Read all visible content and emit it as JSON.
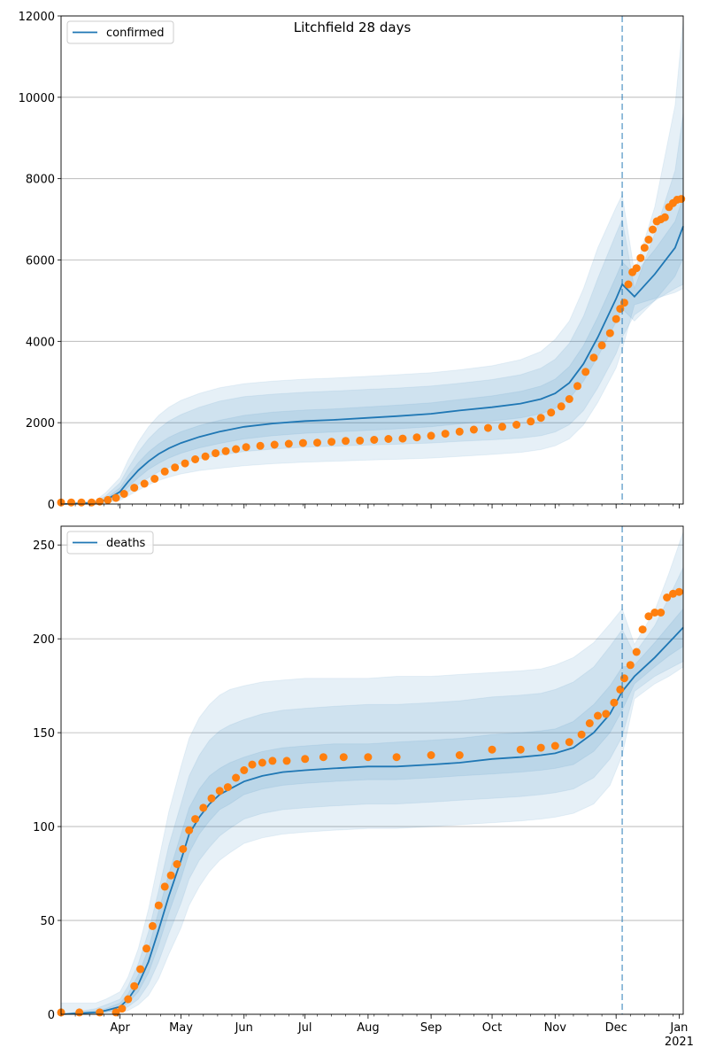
{
  "title": "Litchfield 28 days",
  "colors": {
    "model": "#1f77b4",
    "observed": "#ff7f0e",
    "band": "#1f77b4",
    "grid": "#b0b0b0",
    "cutoff": "#1f77b4"
  },
  "x_axis": {
    "start": "2020-03-03",
    "end": "2021-01-03",
    "ticks": [
      {
        "date": "2020-04-01",
        "label": "Apr"
      },
      {
        "date": "2020-05-01",
        "label": "May"
      },
      {
        "date": "2020-06-01",
        "label": "Jun"
      },
      {
        "date": "2020-07-01",
        "label": "Jul"
      },
      {
        "date": "2020-08-01",
        "label": "Aug"
      },
      {
        "date": "2020-09-01",
        "label": "Sep"
      },
      {
        "date": "2020-10-01",
        "label": "Oct"
      },
      {
        "date": "2020-11-01",
        "label": "Nov"
      },
      {
        "date": "2020-12-01",
        "label": "Dec"
      },
      {
        "date": "2021-01-01",
        "label": "Jan",
        "sublabel": "2021"
      }
    ]
  },
  "chart_data": [
    {
      "type": "line",
      "panel": "top",
      "title": "Litchfield 28 days",
      "legend": "confirmed",
      "legend_position": "top-left",
      "grid": true,
      "ylim": [
        0,
        12000
      ],
      "yticks": [
        0,
        2000,
        4000,
        6000,
        8000,
        10000,
        12000
      ],
      "cutoff_date": "2020-12-04",
      "model": {
        "dates": [
          "2020-03-03",
          "2020-03-20",
          "2020-03-25",
          "2020-04-01",
          "2020-04-05",
          "2020-04-10",
          "2020-04-15",
          "2020-04-20",
          "2020-04-25",
          "2020-05-01",
          "2020-05-10",
          "2020-05-20",
          "2020-06-01",
          "2020-06-15",
          "2020-07-01",
          "2020-07-15",
          "2020-08-01",
          "2020-08-15",
          "2020-09-01",
          "2020-09-15",
          "2020-10-01",
          "2020-10-15",
          "2020-10-25",
          "2020-11-01",
          "2020-11-08",
          "2020-11-15",
          "2020-11-22",
          "2020-12-01",
          "2020-12-04",
          "2020-12-10",
          "2020-12-20",
          "2020-12-30",
          "2021-01-03"
        ],
        "median": [
          0,
          30,
          100,
          300,
          550,
          830,
          1050,
          1230,
          1370,
          1500,
          1650,
          1780,
          1900,
          1980,
          2040,
          2070,
          2120,
          2160,
          2220,
          2300,
          2380,
          2470,
          2580,
          2720,
          2980,
          3450,
          4100,
          5050,
          5400,
          5100,
          5650,
          6300,
          6830
        ],
        "lower_50": [
          0,
          20,
          70,
          220,
          420,
          650,
          850,
          1000,
          1130,
          1250,
          1380,
          1490,
          1600,
          1680,
          1740,
          1770,
          1810,
          1850,
          1900,
          1970,
          2040,
          2120,
          2220,
          2350,
          2590,
          3020,
          3620,
          4480,
          4800,
          4500,
          5000,
          5600,
          6050
        ],
        "upper_50": [
          0,
          40,
          140,
          400,
          700,
          1020,
          1280,
          1480,
          1640,
          1780,
          1930,
          2060,
          2180,
          2260,
          2310,
          2340,
          2390,
          2430,
          2490,
          2570,
          2660,
          2770,
          2900,
          3070,
          3380,
          3900,
          4600,
          5600,
          5950,
          5650,
          6250,
          6950,
          7550
        ],
        "lower_80": [
          0,
          12,
          40,
          140,
          300,
          480,
          650,
          790,
          900,
          1000,
          1110,
          1200,
          1290,
          1350,
          1400,
          1420,
          1450,
          1470,
          1500,
          1540,
          1580,
          1620,
          1680,
          1770,
          1950,
          2300,
          2860,
          3700,
          4100,
          4650,
          5000,
          5300,
          5400
        ],
        "upper_80": [
          0,
          60,
          200,
          520,
          880,
          1280,
          1600,
          1850,
          2040,
          2200,
          2380,
          2530,
          2640,
          2700,
          2750,
          2780,
          2820,
          2850,
          2900,
          2970,
          3060,
          3180,
          3340,
          3560,
          3950,
          4620,
          5550,
          6650,
          7000,
          5300,
          6650,
          8200,
          9600
        ],
        "lower_95": [
          0,
          8,
          25,
          90,
          200,
          340,
          470,
          580,
          660,
          740,
          820,
          880,
          940,
          990,
          1030,
          1050,
          1080,
          1100,
          1130,
          1170,
          1220,
          1270,
          1340,
          1430,
          1600,
          1950,
          2500,
          3350,
          3800,
          4900,
          5050,
          5200,
          5300
        ],
        "upper_95": [
          0,
          90,
          280,
          650,
          1080,
          1530,
          1900,
          2180,
          2380,
          2550,
          2720,
          2860,
          2960,
          3020,
          3070,
          3100,
          3140,
          3180,
          3230,
          3300,
          3400,
          3550,
          3750,
          4050,
          4500,
          5300,
          6300,
          7300,
          7600,
          5700,
          7300,
          9800,
          11900
        ]
      },
      "observed": {
        "dates": [
          "2020-03-03",
          "2020-03-08",
          "2020-03-13",
          "2020-03-18",
          "2020-03-22",
          "2020-03-26",
          "2020-03-30",
          "2020-04-03",
          "2020-04-08",
          "2020-04-13",
          "2020-04-18",
          "2020-04-23",
          "2020-04-28",
          "2020-05-03",
          "2020-05-08",
          "2020-05-13",
          "2020-05-18",
          "2020-05-23",
          "2020-05-28",
          "2020-06-02",
          "2020-06-09",
          "2020-06-16",
          "2020-06-23",
          "2020-06-30",
          "2020-07-07",
          "2020-07-14",
          "2020-07-21",
          "2020-07-28",
          "2020-08-04",
          "2020-08-11",
          "2020-08-18",
          "2020-08-25",
          "2020-09-01",
          "2020-09-08",
          "2020-09-15",
          "2020-09-22",
          "2020-09-29",
          "2020-10-06",
          "2020-10-13",
          "2020-10-20",
          "2020-10-25",
          "2020-10-30",
          "2020-11-04",
          "2020-11-08",
          "2020-11-12",
          "2020-11-16",
          "2020-11-20",
          "2020-11-24",
          "2020-11-28",
          "2020-12-01",
          "2020-12-03",
          "2020-12-05",
          "2020-12-07",
          "2020-12-09",
          "2020-12-11",
          "2020-12-13",
          "2020-12-15",
          "2020-12-17",
          "2020-12-19",
          "2020-12-21",
          "2020-12-23",
          "2020-12-25",
          "2020-12-27",
          "2020-12-29",
          "2020-12-31",
          "2021-01-02"
        ],
        "values": [
          40,
          40,
          40,
          40,
          60,
          100,
          150,
          250,
          400,
          500,
          620,
          800,
          900,
          1000,
          1100,
          1170,
          1250,
          1300,
          1350,
          1400,
          1430,
          1460,
          1480,
          1500,
          1510,
          1530,
          1550,
          1560,
          1580,
          1600,
          1610,
          1640,
          1680,
          1730,
          1780,
          1830,
          1870,
          1900,
          1950,
          2030,
          2120,
          2250,
          2400,
          2580,
          2900,
          3250,
          3600,
          3900,
          4200,
          4550,
          4800,
          4950,
          5400,
          5700,
          5800,
          6050,
          6300,
          6500,
          6750,
          6950,
          7000,
          7050,
          7300,
          7400,
          7480,
          7500
        ]
      }
    },
    {
      "type": "line",
      "panel": "bottom",
      "legend": "deaths",
      "legend_position": "top-left",
      "grid": true,
      "ylim": [
        0,
        260
      ],
      "yticks": [
        0,
        50,
        100,
        150,
        200,
        250
      ],
      "cutoff_date": "2020-12-04",
      "model": {
        "dates": [
          "2020-03-03",
          "2020-03-20",
          "2020-03-25",
          "2020-04-01",
          "2020-04-05",
          "2020-04-10",
          "2020-04-15",
          "2020-04-20",
          "2020-04-25",
          "2020-05-01",
          "2020-05-05",
          "2020-05-10",
          "2020-05-15",
          "2020-05-20",
          "2020-05-25",
          "2020-06-01",
          "2020-06-10",
          "2020-06-20",
          "2020-07-01",
          "2020-07-15",
          "2020-08-01",
          "2020-08-15",
          "2020-09-01",
          "2020-09-15",
          "2020-10-01",
          "2020-10-15",
          "2020-10-25",
          "2020-11-01",
          "2020-11-10",
          "2020-11-20",
          "2020-11-28",
          "2020-12-04",
          "2020-12-10",
          "2020-12-20",
          "2020-12-27",
          "2021-01-03"
        ],
        "median": [
          0,
          1,
          2,
          4,
          8,
          16,
          28,
          45,
          63,
          82,
          96,
          105,
          112,
          117,
          120,
          124,
          127,
          129,
          130,
          131,
          132,
          132,
          133,
          134,
          136,
          137,
          138,
          139,
          142,
          150,
          160,
          172,
          180,
          190,
          198,
          206
        ],
        "lower_50": [
          0,
          0,
          1,
          3,
          6,
          12,
          22,
          37,
          54,
          72,
          86,
          96,
          103,
          109,
          112,
          117,
          120,
          122,
          123,
          124,
          125,
          125,
          126,
          127,
          128,
          129,
          130,
          131,
          133,
          140,
          150,
          162,
          176,
          185,
          191,
          196
        ],
        "upper_50": [
          0,
          2,
          3,
          6,
          11,
          21,
          35,
          55,
          75,
          96,
          110,
          120,
          127,
          131,
          134,
          137,
          140,
          142,
          143,
          144,
          144,
          145,
          146,
          147,
          149,
          150,
          151,
          152,
          156,
          165,
          175,
          185,
          186,
          198,
          207,
          216
        ],
        "lower_80": [
          0,
          0,
          1,
          2,
          4,
          8,
          16,
          28,
          43,
          59,
          72,
          82,
          89,
          95,
          99,
          104,
          107,
          109,
          110,
          111,
          112,
          112,
          113,
          114,
          115,
          116,
          117,
          118,
          120,
          126,
          136,
          148,
          172,
          180,
          184,
          188
        ],
        "upper_80": [
          0,
          3,
          5,
          8,
          15,
          27,
          44,
          66,
          90,
          112,
          127,
          138,
          146,
          151,
          154,
          157,
          160,
          162,
          163,
          164,
          165,
          165,
          166,
          167,
          169,
          170,
          171,
          173,
          177,
          185,
          196,
          205,
          192,
          207,
          222,
          238
        ],
        "lower_95": [
          0,
          0,
          0,
          1,
          2,
          5,
          10,
          19,
          32,
          46,
          58,
          68,
          76,
          82,
          86,
          91,
          94,
          96,
          97,
          98,
          99,
          99,
          100,
          101,
          102,
          103,
          104,
          105,
          107,
          112,
          122,
          138,
          168,
          176,
          180,
          185
        ],
        "upper_95": [
          6,
          6,
          8,
          12,
          20,
          35,
          56,
          82,
          108,
          132,
          147,
          158,
          165,
          170,
          173,
          175,
          177,
          178,
          179,
          179,
          179,
          180,
          180,
          181,
          182,
          183,
          184,
          186,
          190,
          198,
          208,
          216,
          197,
          215,
          235,
          257
        ]
      },
      "observed": {
        "dates": [
          "2020-03-03",
          "2020-03-12",
          "2020-03-22",
          "2020-03-30",
          "2020-04-02",
          "2020-04-05",
          "2020-04-08",
          "2020-04-11",
          "2020-04-14",
          "2020-04-17",
          "2020-04-20",
          "2020-04-23",
          "2020-04-26",
          "2020-04-29",
          "2020-05-02",
          "2020-05-05",
          "2020-05-08",
          "2020-05-12",
          "2020-05-16",
          "2020-05-20",
          "2020-05-24",
          "2020-05-28",
          "2020-06-01",
          "2020-06-05",
          "2020-06-10",
          "2020-06-15",
          "2020-06-22",
          "2020-07-01",
          "2020-07-10",
          "2020-07-20",
          "2020-08-01",
          "2020-08-15",
          "2020-09-01",
          "2020-09-15",
          "2020-10-01",
          "2020-10-15",
          "2020-10-25",
          "2020-11-01",
          "2020-11-08",
          "2020-11-14",
          "2020-11-18",
          "2020-11-22",
          "2020-11-26",
          "2020-11-30",
          "2020-12-03",
          "2020-12-05",
          "2020-12-08",
          "2020-12-11",
          "2020-12-14",
          "2020-12-17",
          "2020-12-20",
          "2020-12-23",
          "2020-12-26",
          "2020-12-29",
          "2021-01-01"
        ],
        "values": [
          1,
          1,
          1,
          1,
          3,
          8,
          15,
          24,
          35,
          47,
          58,
          68,
          74,
          80,
          88,
          98,
          104,
          110,
          115,
          119,
          121,
          126,
          130,
          133,
          134,
          135,
          135,
          136,
          137,
          137,
          137,
          137,
          138,
          138,
          141,
          141,
          142,
          143,
          145,
          149,
          155,
          159,
          160,
          166,
          173,
          179,
          186,
          193,
          205,
          212,
          214,
          214,
          222,
          224,
          225
        ]
      }
    }
  ]
}
